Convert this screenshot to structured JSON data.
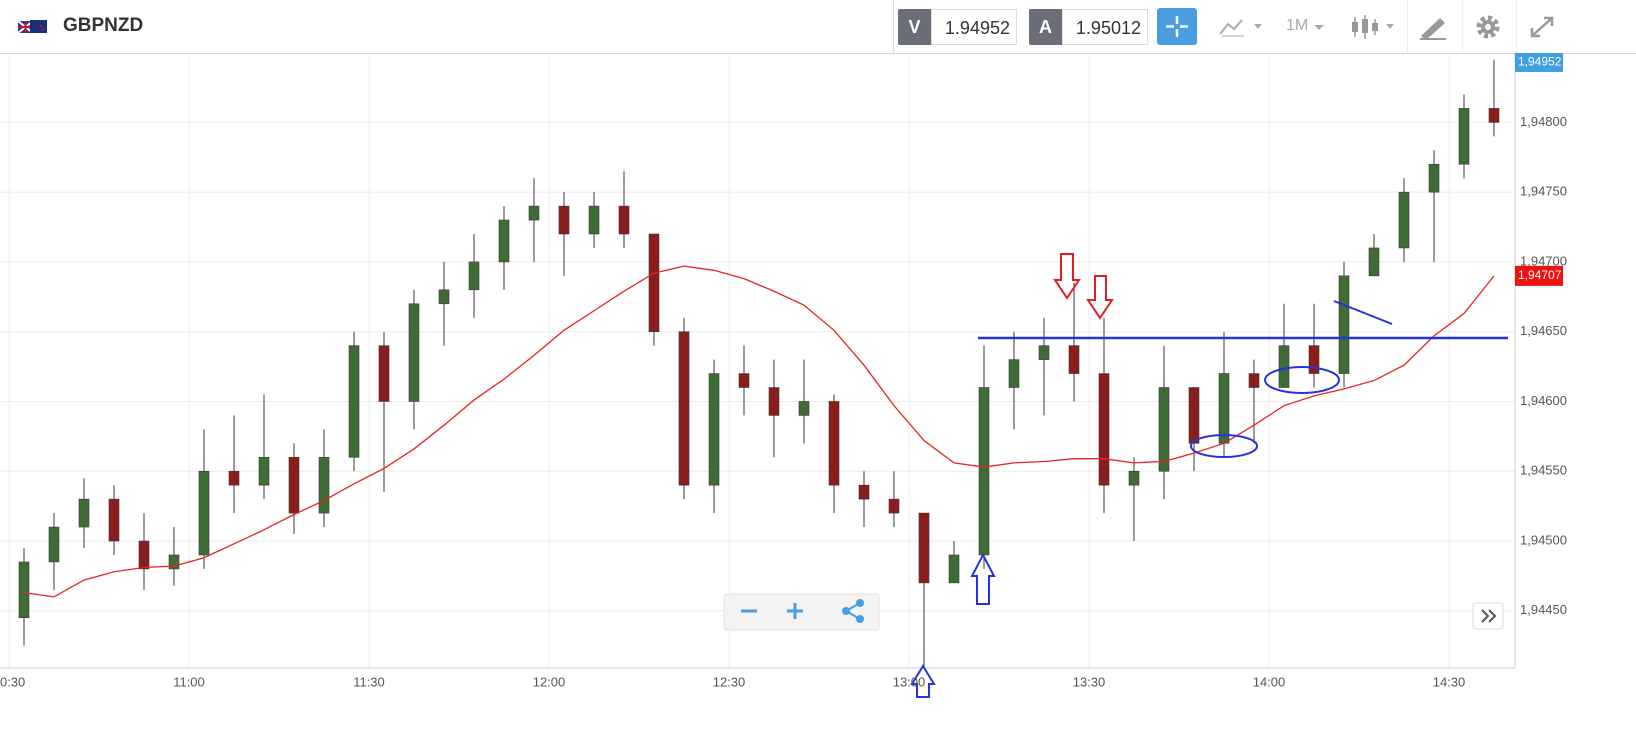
{
  "toolbar": {
    "symbol": "GBPNZD",
    "sell_label": "V",
    "sell_price": "1.94952",
    "buy_label": "A",
    "buy_price": "1.95012",
    "timeframe": "1M"
  },
  "chart_data": {
    "type": "candlestick",
    "x": [
      "10:30",
      "10:35",
      "10:40",
      "10:45",
      "10:50",
      "10:55",
      "11:00",
      "11:05",
      "11:10",
      "11:15",
      "11:20",
      "11:25",
      "11:30",
      "11:35",
      "11:40",
      "11:45",
      "11:50",
      "11:55",
      "12:00",
      "12:05",
      "12:10",
      "12:15",
      "12:20",
      "12:25",
      "12:30",
      "12:35",
      "12:40",
      "12:45",
      "12:50",
      "12:55",
      "13:00",
      "13:05",
      "13:10",
      "13:15",
      "13:20",
      "13:25",
      "13:30",
      "13:35",
      "13:40",
      "13:45",
      "13:50",
      "13:55",
      "14:00",
      "14:05",
      "14:10",
      "14:15",
      "14:20",
      "14:25",
      "14:30",
      "14:35"
    ],
    "open": [
      1.94445,
      1.94485,
      1.9451,
      1.9453,
      1.945,
      1.9448,
      1.9449,
      1.9455,
      1.9454,
      1.9456,
      1.9452,
      1.9456,
      1.9464,
      1.946,
      1.9467,
      1.9468,
      1.947,
      1.9473,
      1.9474,
      1.9472,
      1.9474,
      1.9472,
      1.9465,
      1.9454,
      1.9462,
      1.9461,
      1.9459,
      1.946,
      1.9454,
      1.9453,
      1.9452,
      1.9447,
      1.9449,
      1.9461,
      1.9463,
      1.9464,
      1.9462,
      1.9454,
      1.9455,
      1.9461,
      1.9457,
      1.9462,
      1.9461,
      1.9464,
      1.9462,
      1.9469,
      1.9471,
      1.9475,
      1.9477,
      1.9481
    ],
    "high": [
      1.94495,
      1.9452,
      1.94545,
      1.9454,
      1.9452,
      1.9451,
      1.9458,
      1.9459,
      1.94605,
      1.9457,
      1.9458,
      1.9465,
      1.9465,
      1.9468,
      1.947,
      1.9472,
      1.9474,
      1.9476,
      1.9475,
      1.9475,
      1.94765,
      1.9472,
      1.9466,
      1.9463,
      1.9464,
      1.9463,
      1.9463,
      1.94605,
      1.9455,
      1.9455,
      1.9452,
      1.945,
      1.9464,
      1.9465,
      1.9466,
      1.94685,
      1.9466,
      1.9456,
      1.9464,
      1.9461,
      1.9465,
      1.9463,
      1.9467,
      1.9467,
      1.947,
      1.9472,
      1.9476,
      1.9478,
      1.9482,
      1.94845
    ],
    "low": [
      1.94425,
      1.94465,
      1.94495,
      1.9449,
      1.94465,
      1.94468,
      1.9448,
      1.9452,
      1.9453,
      1.94505,
      1.9451,
      1.9455,
      1.94535,
      1.9458,
      1.9464,
      1.9466,
      1.9468,
      1.947,
      1.9469,
      1.9471,
      1.9471,
      1.9464,
      1.9453,
      1.9452,
      1.9459,
      1.9456,
      1.9457,
      1.9452,
      1.9451,
      1.9451,
      1.9441,
      1.9447,
      1.9448,
      1.9458,
      1.9459,
      1.946,
      1.9452,
      1.945,
      1.9453,
      1.9455,
      1.9456,
      1.9457,
      1.9461,
      1.9461,
      1.9461,
      1.9469,
      1.947,
      1.947,
      1.9476,
      1.9479
    ],
    "close": [
      1.94485,
      1.9451,
      1.9453,
      1.945,
      1.9448,
      1.9449,
      1.9455,
      1.9454,
      1.9456,
      1.9452,
      1.9456,
      1.9464,
      1.946,
      1.9467,
      1.9468,
      1.947,
      1.9473,
      1.9474,
      1.9472,
      1.9474,
      1.9472,
      1.9465,
      1.9454,
      1.9462,
      1.9461,
      1.9459,
      1.946,
      1.9454,
      1.9453,
      1.9452,
      1.9447,
      1.9449,
      1.9461,
      1.9463,
      1.9464,
      1.9462,
      1.9454,
      1.9455,
      1.9461,
      1.9457,
      1.9462,
      1.9461,
      1.9464,
      1.9462,
      1.9469,
      1.9471,
      1.9475,
      1.9477,
      1.9481,
      1.948
    ],
    "up_color": "#3f6b35",
    "down_color": "#8a1c1c",
    "wick_color": "#3a3a3a",
    "moving_average": {
      "color": "#e8231f",
      "values": [
        1.94463,
        1.9446,
        1.94472,
        1.94478,
        1.94481,
        1.94482,
        1.94488,
        1.94498,
        1.94508,
        1.94519,
        1.94529,
        1.94541,
        1.94552,
        1.94566,
        1.94583,
        1.94601,
        1.94616,
        1.94633,
        1.94651,
        1.94665,
        1.94679,
        1.94692,
        1.94697,
        1.94694,
        1.94688,
        1.94679,
        1.94669,
        1.94651,
        1.94626,
        1.94597,
        1.94572,
        1.94556,
        1.94553,
        1.94556,
        1.94557,
        1.94559,
        1.94559,
        1.94556,
        1.94557,
        1.94563,
        1.9457,
        1.94583,
        1.94597,
        1.94604,
        1.94609,
        1.94615,
        1.94626,
        1.94647,
        1.94663,
        1.9469
      ]
    },
    "ylim": [
      1.94409,
      1.94849
    ],
    "yticks": [
      {
        "value": 1.9445,
        "label": "1,94450"
      },
      {
        "value": 1.945,
        "label": "1,94500"
      },
      {
        "value": 1.9455,
        "label": "1,94550"
      },
      {
        "value": 1.946,
        "label": "1,94600"
      },
      {
        "value": 1.9465,
        "label": "1,94650"
      },
      {
        "value": 1.947,
        "label": "1,94700"
      },
      {
        "value": 1.9475,
        "label": "1,94750"
      },
      {
        "value": 1.948,
        "label": "1,94800"
      }
    ],
    "xticks": [
      "10:30",
      "11:00",
      "11:30",
      "12:00",
      "12:30",
      "13:00",
      "13:30",
      "14:00",
      "14:30"
    ],
    "grid": true,
    "price_label": "1,94952",
    "ma_label": "1,94707"
  }
}
